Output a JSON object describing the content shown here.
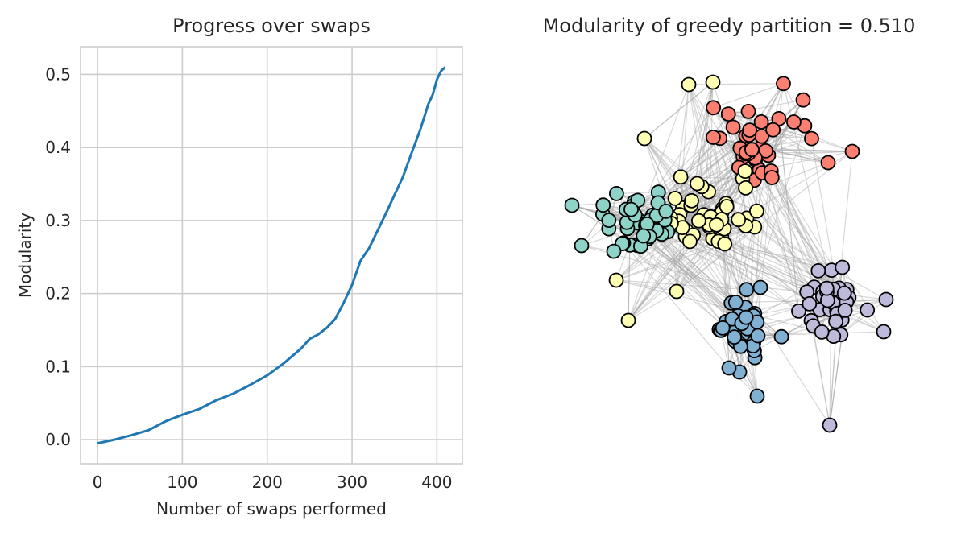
{
  "chart_data": [
    {
      "type": "line",
      "title": "Progress over swaps",
      "xlabel": "Number of swaps performed",
      "ylabel": "Modularity",
      "xlim": [
        -20,
        430
      ],
      "ylim": [
        -0.033,
        0.538
      ],
      "xticks": [
        0,
        100,
        200,
        300,
        400
      ],
      "yticks": [
        0.0,
        0.1,
        0.2,
        0.3,
        0.4,
        0.5
      ],
      "xtick_labels": [
        "0",
        "100",
        "200",
        "300",
        "400"
      ],
      "ytick_labels": [
        "0.0",
        "0.1",
        "0.2",
        "0.3",
        "0.4",
        "0.5"
      ],
      "grid": true,
      "series": [
        {
          "color": "#1f77b4",
          "x": [
            0,
            20,
            40,
            60,
            80,
            100,
            120,
            140,
            160,
            180,
            200,
            220,
            240,
            250,
            260,
            270,
            280,
            290,
            300,
            310,
            320,
            330,
            340,
            350,
            360,
            370,
            380,
            390,
            395,
            400,
            405,
            410
          ],
          "y": [
            -0.005,
            0.0,
            0.006,
            0.013,
            0.025,
            0.034,
            0.042,
            0.054,
            0.063,
            0.075,
            0.088,
            0.105,
            0.125,
            0.138,
            0.144,
            0.153,
            0.165,
            0.187,
            0.212,
            0.245,
            0.262,
            0.286,
            0.31,
            0.335,
            0.36,
            0.392,
            0.423,
            0.46,
            0.472,
            0.493,
            0.505,
            0.51
          ]
        }
      ]
    },
    {
      "type": "network",
      "title": "Modularity of greedy partition = 0.510",
      "colors": {
        "red": "#fb8072",
        "yellow": "#ffffb3",
        "teal": "#8dd3c7",
        "lavender": "#bebada",
        "blue": "#80b1d3",
        "edge": "#a6a6a6",
        "node_outline": "#000000"
      },
      "communities": [
        {
          "color": "red",
          "nodes": 38
        },
        {
          "color": "yellow",
          "nodes": 52
        },
        {
          "color": "teal",
          "nodes": 44
        },
        {
          "color": "lavender",
          "nodes": 38
        },
        {
          "color": "blue",
          "nodes": 34
        }
      ]
    }
  ]
}
